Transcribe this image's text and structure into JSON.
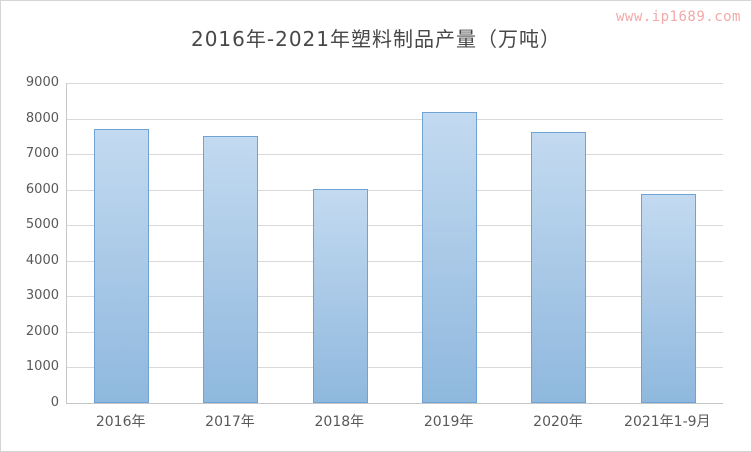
{
  "watermark": "www.ip1689.com",
  "chart_data": {
    "type": "bar",
    "title": "2016年-2021年塑料制品产量（万吨）",
    "categories": [
      "2016年",
      "2017年",
      "2018年",
      "2019年",
      "2020年",
      "2021年1-9月"
    ],
    "values": [
      7700,
      7520,
      6030,
      8190,
      7620,
      5890
    ],
    "xlabel": "",
    "ylabel": "",
    "ylim": [
      0,
      9000
    ],
    "ytick_step": 1000,
    "grid": true,
    "legend": "none",
    "colors": {
      "bar_top": "#c3daf0",
      "bar_bottom": "#8fb8de",
      "bar_border": "#6fa3d4",
      "gridline": "#d9d9d9",
      "axis_text": "#595959",
      "title_text": "#484848",
      "watermark_text": "#f2a9a9"
    }
  }
}
